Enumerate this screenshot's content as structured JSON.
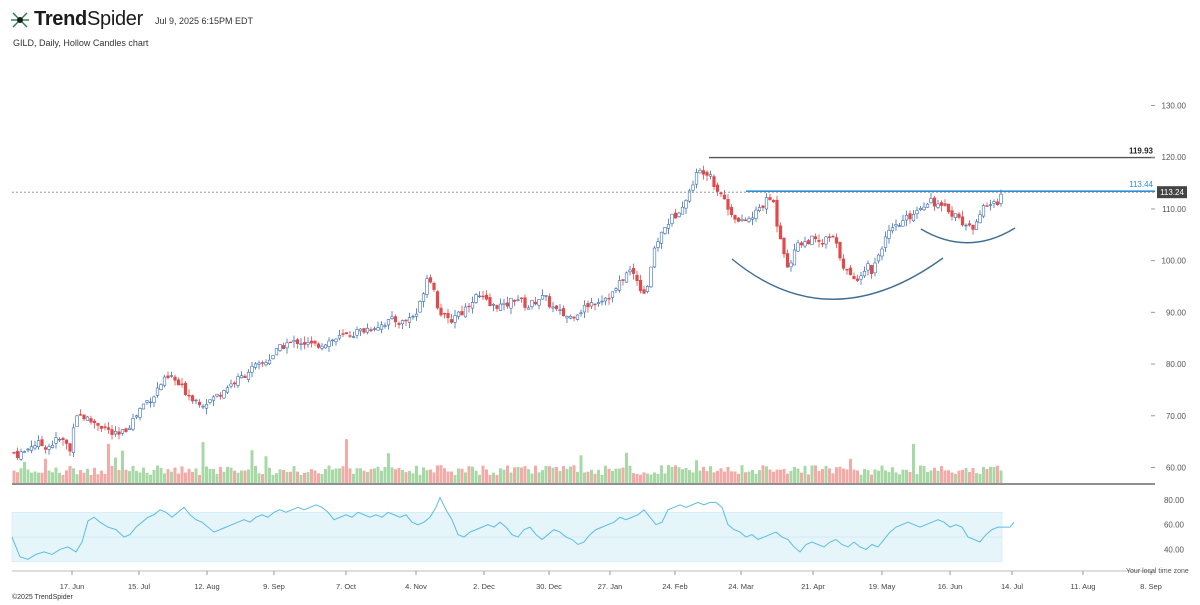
{
  "header": {
    "brand_bold": "Trend",
    "brand_light": "Spider",
    "timestamp": "Jul 9, 2025 6:15PM EDT",
    "subtitle": "GILD, Daily, Hollow Candles chart"
  },
  "footer": {
    "copyright": "©2025 TrendSpider",
    "timezone_note": "Your local time zone"
  },
  "colors": {
    "up": "#3b6fb6",
    "down": "#e04a4a",
    "vol_up": "#a9d8a7",
    "vol_down": "#f4aaa6",
    "rsi_line": "#5bbde6",
    "rsi_band": "#e5f5fa",
    "arc": "#3f6f94",
    "resistance": "#555555",
    "neckline": "#2f8fd6"
  },
  "chart_data": {
    "type": "candlestick",
    "ticker": "GILD",
    "interval": "Daily",
    "price_axis": {
      "ticks": [
        "130.00",
        "120.00",
        "110.00",
        "100.00",
        "90.00",
        "80.00",
        "70.00",
        "60.00"
      ],
      "min": 57,
      "max": 133
    },
    "rsi_axis": {
      "ticks": [
        "80.00",
        "60.00",
        "40.00"
      ],
      "min": 25,
      "max": 88,
      "band": [
        30,
        70
      ]
    },
    "x_ticks": [
      "17. Jun",
      "15. Jul",
      "12. Aug",
      "9. Sep",
      "7. Oct",
      "4. Nov",
      "2. Dec",
      "30. Dec",
      "27. Jan",
      "24. Feb",
      "24. Mar",
      "21. Apr",
      "19. May",
      "16. Jun",
      "14. Jul",
      "11. Aug",
      "8. Sep"
    ],
    "last_price": "113.24",
    "resistance": {
      "value": 119.93,
      "label": "119.93"
    },
    "neckline": {
      "value": 113.44,
      "label": "113.44"
    },
    "price_path": [
      [
        0,
        66.5
      ],
      [
        8,
        64
      ],
      [
        16,
        62.5
      ],
      [
        25,
        63
      ],
      [
        32,
        64.5
      ],
      [
        40,
        64.5
      ],
      [
        48,
        64
      ],
      [
        58,
        65.5
      ],
      [
        64,
        65
      ],
      [
        69,
        64
      ],
      [
        71,
        62
      ],
      [
        73,
        68
      ],
      [
        76,
        70.5
      ],
      [
        82,
        70
      ],
      [
        90,
        69
      ],
      [
        98,
        68.5
      ],
      [
        106,
        67.5
      ],
      [
        112,
        66.5
      ],
      [
        118,
        66
      ],
      [
        124,
        67
      ],
      [
        130,
        68.5
      ],
      [
        136,
        70
      ],
      [
        142,
        72
      ],
      [
        148,
        73
      ],
      [
        154,
        74
      ],
      [
        160,
        76
      ],
      [
        166,
        77
      ],
      [
        172,
        77.5
      ],
      [
        178,
        76
      ],
      [
        184,
        75
      ],
      [
        190,
        74
      ],
      [
        196,
        73
      ],
      [
        203,
        72.5
      ],
      [
        210,
        73
      ],
      [
        218,
        74
      ],
      [
        226,
        75.5
      ],
      [
        234,
        76.5
      ],
      [
        242,
        77.5
      ],
      [
        250,
        79
      ],
      [
        258,
        79.5
      ],
      [
        266,
        80.5
      ],
      [
        274,
        82
      ],
      [
        280,
        83
      ],
      [
        286,
        84
      ],
      [
        292,
        84
      ],
      [
        298,
        84.5
      ],
      [
        306,
        84
      ],
      [
        314,
        83.5
      ],
      [
        322,
        84
      ],
      [
        330,
        84.5
      ],
      [
        338,
        85
      ],
      [
        346,
        85.5
      ],
      [
        354,
        86
      ],
      [
        362,
        86.5
      ],
      [
        370,
        87
      ],
      [
        378,
        87.5
      ],
      [
        386,
        88
      ],
      [
        394,
        88.5
      ],
      [
        402,
        88
      ],
      [
        410,
        89
      ],
      [
        418,
        90
      ],
      [
        423,
        94
      ],
      [
        428,
        97.5
      ],
      [
        432,
        96
      ],
      [
        438,
        91
      ],
      [
        444,
        89
      ],
      [
        450,
        88
      ],
      [
        456,
        90
      ],
      [
        462,
        90
      ],
      [
        468,
        91.5
      ],
      [
        474,
        93
      ],
      [
        480,
        93
      ],
      [
        486,
        92
      ],
      [
        492,
        91
      ],
      [
        498,
        91.5
      ],
      [
        504,
        91
      ],
      [
        510,
        92
      ],
      [
        516,
        93
      ],
      [
        522,
        92
      ],
      [
        528,
        91
      ],
      [
        534,
        92
      ],
      [
        540,
        93
      ],
      [
        546,
        92.5
      ],
      [
        552,
        91
      ],
      [
        558,
        90
      ],
      [
        564,
        89.5
      ],
      [
        570,
        89
      ],
      [
        576,
        90
      ],
      [
        582,
        90.5
      ],
      [
        588,
        91.5
      ],
      [
        594,
        92
      ],
      [
        600,
        92.5
      ],
      [
        606,
        93
      ],
      [
        612,
        93.5
      ],
      [
        618,
        95
      ],
      [
        624,
        97
      ],
      [
        630,
        98
      ],
      [
        636,
        97
      ],
      [
        640,
        95
      ],
      [
        644,
        94
      ],
      [
        648,
        95.5
      ],
      [
        652,
        100
      ],
      [
        658,
        104
      ],
      [
        664,
        106
      ],
      [
        670,
        108
      ],
      [
        676,
        109
      ],
      [
        682,
        111
      ],
      [
        688,
        112
      ],
      [
        692,
        115
      ],
      [
        698,
        117
      ],
      [
        704,
        117.5
      ],
      [
        710,
        117
      ],
      [
        716,
        114
      ],
      [
        722,
        113
      ],
      [
        728,
        110
      ],
      [
        734,
        109
      ],
      [
        740,
        107
      ],
      [
        746,
        108
      ],
      [
        752,
        108
      ],
      [
        758,
        110
      ],
      [
        764,
        111
      ],
      [
        770,
        112
      ],
      [
        774,
        111
      ],
      [
        778,
        106
      ],
      [
        782,
        104
      ],
      [
        786,
        100
      ],
      [
        790,
        98
      ],
      [
        794,
        102
      ],
      [
        798,
        104
      ],
      [
        802,
        103
      ],
      [
        808,
        104
      ],
      [
        814,
        104
      ],
      [
        820,
        103
      ],
      [
        826,
        104
      ],
      [
        830,
        104.5
      ],
      [
        834,
        104
      ],
      [
        840,
        101
      ],
      [
        846,
        98
      ],
      [
        850,
        97
      ],
      [
        854,
        96
      ],
      [
        858,
        97
      ],
      [
        862,
        98
      ],
      [
        868,
        99
      ],
      [
        872,
        98
      ],
      [
        876,
        100
      ],
      [
        882,
        103
      ],
      [
        888,
        105
      ],
      [
        894,
        106
      ],
      [
        900,
        107
      ],
      [
        906,
        108
      ],
      [
        912,
        109
      ],
      [
        918,
        110
      ],
      [
        924,
        111
      ],
      [
        930,
        112
      ],
      [
        936,
        111
      ],
      [
        942,
        110
      ],
      [
        948,
        110
      ],
      [
        954,
        109
      ],
      [
        960,
        108
      ],
      [
        966,
        107
      ],
      [
        970,
        106
      ],
      [
        974,
        107
      ],
      [
        978,
        109
      ],
      [
        984,
        110
      ],
      [
        990,
        111
      ],
      [
        996,
        111
      ],
      [
        1002,
        113.24
      ]
    ],
    "rsi_path": [
      [
        0,
        50
      ],
      [
        8,
        34
      ],
      [
        16,
        32
      ],
      [
        24,
        36
      ],
      [
        32,
        38
      ],
      [
        40,
        36
      ],
      [
        48,
        40
      ],
      [
        56,
        42
      ],
      [
        64,
        38
      ],
      [
        70,
        46
      ],
      [
        76,
        63
      ],
      [
        82,
        66
      ],
      [
        88,
        62
      ],
      [
        96,
        58
      ],
      [
        104,
        56
      ],
      [
        112,
        50
      ],
      [
        118,
        52
      ],
      [
        124,
        58
      ],
      [
        130,
        62
      ],
      [
        136,
        66
      ],
      [
        142,
        68
      ],
      [
        148,
        72
      ],
      [
        154,
        70
      ],
      [
        160,
        66
      ],
      [
        166,
        70
      ],
      [
        172,
        74
      ],
      [
        178,
        68
      ],
      [
        184,
        64
      ],
      [
        190,
        62
      ],
      [
        196,
        58
      ],
      [
        202,
        54
      ],
      [
        208,
        56
      ],
      [
        214,
        58
      ],
      [
        220,
        60
      ],
      [
        226,
        62
      ],
      [
        232,
        64
      ],
      [
        238,
        62
      ],
      [
        244,
        66
      ],
      [
        250,
        68
      ],
      [
        256,
        66
      ],
      [
        262,
        70
      ],
      [
        268,
        72
      ],
      [
        274,
        70
      ],
      [
        280,
        72
      ],
      [
        286,
        74
      ],
      [
        292,
        72
      ],
      [
        298,
        74
      ],
      [
        304,
        76
      ],
      [
        310,
        74
      ],
      [
        316,
        70
      ],
      [
        322,
        64
      ],
      [
        328,
        66
      ],
      [
        334,
        68
      ],
      [
        340,
        66
      ],
      [
        346,
        70
      ],
      [
        352,
        68
      ],
      [
        358,
        66
      ],
      [
        364,
        68
      ],
      [
        370,
        66
      ],
      [
        376,
        70
      ],
      [
        382,
        68
      ],
      [
        388,
        66
      ],
      [
        394,
        68
      ],
      [
        400,
        62
      ],
      [
        406,
        60
      ],
      [
        412,
        62
      ],
      [
        418,
        66
      ],
      [
        424,
        74
      ],
      [
        428,
        82
      ],
      [
        434,
        72
      ],
      [
        440,
        64
      ],
      [
        446,
        52
      ],
      [
        452,
        50
      ],
      [
        458,
        54
      ],
      [
        464,
        56
      ],
      [
        470,
        58
      ],
      [
        476,
        60
      ],
      [
        482,
        58
      ],
      [
        488,
        62
      ],
      [
        494,
        58
      ],
      [
        500,
        52
      ],
      [
        506,
        50
      ],
      [
        512,
        56
      ],
      [
        518,
        58
      ],
      [
        524,
        52
      ],
      [
        530,
        48
      ],
      [
        536,
        52
      ],
      [
        542,
        56
      ],
      [
        548,
        54
      ],
      [
        554,
        50
      ],
      [
        560,
        48
      ],
      [
        566,
        44
      ],
      [
        572,
        46
      ],
      [
        578,
        52
      ],
      [
        584,
        56
      ],
      [
        590,
        58
      ],
      [
        596,
        60
      ],
      [
        602,
        62
      ],
      [
        608,
        66
      ],
      [
        614,
        64
      ],
      [
        620,
        66
      ],
      [
        626,
        68
      ],
      [
        632,
        72
      ],
      [
        638,
        66
      ],
      [
        644,
        60
      ],
      [
        650,
        62
      ],
      [
        656,
        72
      ],
      [
        662,
        74
      ],
      [
        668,
        76
      ],
      [
        674,
        74
      ],
      [
        680,
        76
      ],
      [
        686,
        78
      ],
      [
        692,
        76
      ],
      [
        698,
        78
      ],
      [
        704,
        78
      ],
      [
        710,
        74
      ],
      [
        716,
        60
      ],
      [
        722,
        56
      ],
      [
        728,
        54
      ],
      [
        734,
        50
      ],
      [
        740,
        52
      ],
      [
        746,
        48
      ],
      [
        752,
        50
      ],
      [
        758,
        52
      ],
      [
        764,
        54
      ],
      [
        770,
        50
      ],
      [
        776,
        48
      ],
      [
        782,
        42
      ],
      [
        788,
        38
      ],
      [
        794,
        44
      ],
      [
        800,
        46
      ],
      [
        806,
        44
      ],
      [
        812,
        42
      ],
      [
        818,
        46
      ],
      [
        824,
        48
      ],
      [
        830,
        44
      ],
      [
        836,
        42
      ],
      [
        842,
        46
      ],
      [
        848,
        42
      ],
      [
        854,
        40
      ],
      [
        860,
        44
      ],
      [
        866,
        42
      ],
      [
        872,
        48
      ],
      [
        878,
        54
      ],
      [
        884,
        58
      ],
      [
        890,
        60
      ],
      [
        896,
        62
      ],
      [
        902,
        60
      ],
      [
        908,
        58
      ],
      [
        914,
        60
      ],
      [
        920,
        62
      ],
      [
        926,
        64
      ],
      [
        932,
        62
      ],
      [
        938,
        58
      ],
      [
        944,
        60
      ],
      [
        950,
        58
      ],
      [
        956,
        50
      ],
      [
        962,
        48
      ],
      [
        968,
        46
      ],
      [
        974,
        52
      ],
      [
        980,
        56
      ],
      [
        986,
        58
      ],
      [
        992,
        58
      ],
      [
        998,
        58
      ],
      [
        1002,
        62
      ]
    ]
  }
}
